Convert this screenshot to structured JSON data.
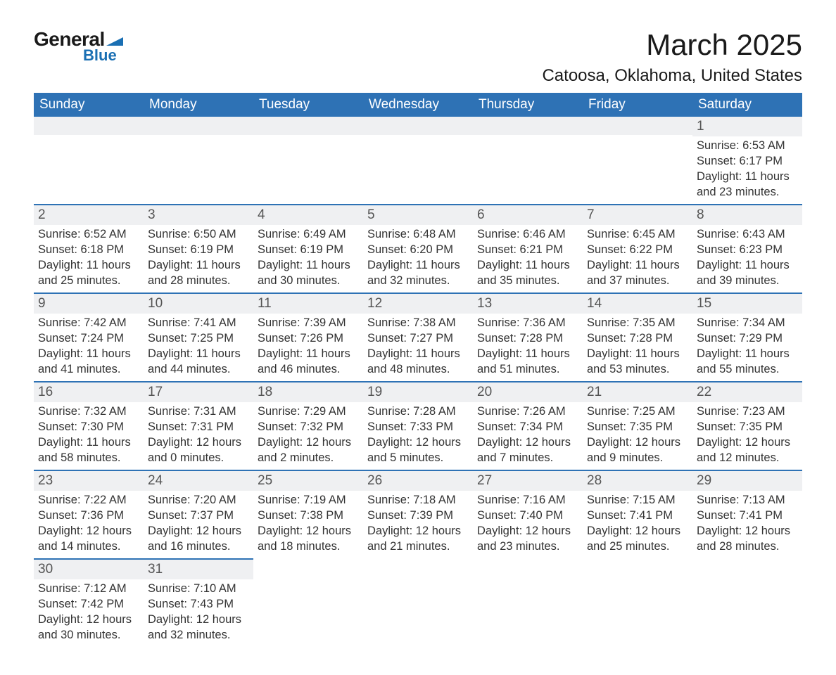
{
  "branding": {
    "logo_top_text": "General",
    "logo_bottom_text": "Blue",
    "logo_top_color": "#1a1a1a",
    "logo_bottom_color": "#1a6fb3",
    "logo_shape_color": "#1a6fb3"
  },
  "header": {
    "month_title": "March 2025",
    "location": "Catoosa, Oklahoma, United States"
  },
  "styling": {
    "page_background": "#ffffff",
    "header_bar_color": "#2e72b5",
    "header_text_color": "#ffffff",
    "daynum_row_color": "#eff0f2",
    "cell_top_border_color": "#2e72b5",
    "body_text_color": "#333333",
    "title_fontsize": 42,
    "location_fontsize": 24,
    "weekday_fontsize": 19,
    "daynum_fontsize": 19,
    "body_fontsize": 16.5
  },
  "weekdays": [
    "Sunday",
    "Monday",
    "Tuesday",
    "Wednesday",
    "Thursday",
    "Friday",
    "Saturday"
  ],
  "weeks": [
    [
      {
        "empty": true
      },
      {
        "empty": true
      },
      {
        "empty": true
      },
      {
        "empty": true
      },
      {
        "empty": true
      },
      {
        "empty": true
      },
      {
        "day": "1",
        "sunrise": "Sunrise: 6:53 AM",
        "sunset": "Sunset: 6:17 PM",
        "daylight1": "Daylight: 11 hours",
        "daylight2": "and 23 minutes."
      }
    ],
    [
      {
        "day": "2",
        "sunrise": "Sunrise: 6:52 AM",
        "sunset": "Sunset: 6:18 PM",
        "daylight1": "Daylight: 11 hours",
        "daylight2": "and 25 minutes."
      },
      {
        "day": "3",
        "sunrise": "Sunrise: 6:50 AM",
        "sunset": "Sunset: 6:19 PM",
        "daylight1": "Daylight: 11 hours",
        "daylight2": "and 28 minutes."
      },
      {
        "day": "4",
        "sunrise": "Sunrise: 6:49 AM",
        "sunset": "Sunset: 6:19 PM",
        "daylight1": "Daylight: 11 hours",
        "daylight2": "and 30 minutes."
      },
      {
        "day": "5",
        "sunrise": "Sunrise: 6:48 AM",
        "sunset": "Sunset: 6:20 PM",
        "daylight1": "Daylight: 11 hours",
        "daylight2": "and 32 minutes."
      },
      {
        "day": "6",
        "sunrise": "Sunrise: 6:46 AM",
        "sunset": "Sunset: 6:21 PM",
        "daylight1": "Daylight: 11 hours",
        "daylight2": "and 35 minutes."
      },
      {
        "day": "7",
        "sunrise": "Sunrise: 6:45 AM",
        "sunset": "Sunset: 6:22 PM",
        "daylight1": "Daylight: 11 hours",
        "daylight2": "and 37 minutes."
      },
      {
        "day": "8",
        "sunrise": "Sunrise: 6:43 AM",
        "sunset": "Sunset: 6:23 PM",
        "daylight1": "Daylight: 11 hours",
        "daylight2": "and 39 minutes."
      }
    ],
    [
      {
        "day": "9",
        "sunrise": "Sunrise: 7:42 AM",
        "sunset": "Sunset: 7:24 PM",
        "daylight1": "Daylight: 11 hours",
        "daylight2": "and 41 minutes."
      },
      {
        "day": "10",
        "sunrise": "Sunrise: 7:41 AM",
        "sunset": "Sunset: 7:25 PM",
        "daylight1": "Daylight: 11 hours",
        "daylight2": "and 44 minutes."
      },
      {
        "day": "11",
        "sunrise": "Sunrise: 7:39 AM",
        "sunset": "Sunset: 7:26 PM",
        "daylight1": "Daylight: 11 hours",
        "daylight2": "and 46 minutes."
      },
      {
        "day": "12",
        "sunrise": "Sunrise: 7:38 AM",
        "sunset": "Sunset: 7:27 PM",
        "daylight1": "Daylight: 11 hours",
        "daylight2": "and 48 minutes."
      },
      {
        "day": "13",
        "sunrise": "Sunrise: 7:36 AM",
        "sunset": "Sunset: 7:28 PM",
        "daylight1": "Daylight: 11 hours",
        "daylight2": "and 51 minutes."
      },
      {
        "day": "14",
        "sunrise": "Sunrise: 7:35 AM",
        "sunset": "Sunset: 7:28 PM",
        "daylight1": "Daylight: 11 hours",
        "daylight2": "and 53 minutes."
      },
      {
        "day": "15",
        "sunrise": "Sunrise: 7:34 AM",
        "sunset": "Sunset: 7:29 PM",
        "daylight1": "Daylight: 11 hours",
        "daylight2": "and 55 minutes."
      }
    ],
    [
      {
        "day": "16",
        "sunrise": "Sunrise: 7:32 AM",
        "sunset": "Sunset: 7:30 PM",
        "daylight1": "Daylight: 11 hours",
        "daylight2": "and 58 minutes."
      },
      {
        "day": "17",
        "sunrise": "Sunrise: 7:31 AM",
        "sunset": "Sunset: 7:31 PM",
        "daylight1": "Daylight: 12 hours",
        "daylight2": "and 0 minutes."
      },
      {
        "day": "18",
        "sunrise": "Sunrise: 7:29 AM",
        "sunset": "Sunset: 7:32 PM",
        "daylight1": "Daylight: 12 hours",
        "daylight2": "and 2 minutes."
      },
      {
        "day": "19",
        "sunrise": "Sunrise: 7:28 AM",
        "sunset": "Sunset: 7:33 PM",
        "daylight1": "Daylight: 12 hours",
        "daylight2": "and 5 minutes."
      },
      {
        "day": "20",
        "sunrise": "Sunrise: 7:26 AM",
        "sunset": "Sunset: 7:34 PM",
        "daylight1": "Daylight: 12 hours",
        "daylight2": "and 7 minutes."
      },
      {
        "day": "21",
        "sunrise": "Sunrise: 7:25 AM",
        "sunset": "Sunset: 7:35 PM",
        "daylight1": "Daylight: 12 hours",
        "daylight2": "and 9 minutes."
      },
      {
        "day": "22",
        "sunrise": "Sunrise: 7:23 AM",
        "sunset": "Sunset: 7:35 PM",
        "daylight1": "Daylight: 12 hours",
        "daylight2": "and 12 minutes."
      }
    ],
    [
      {
        "day": "23",
        "sunrise": "Sunrise: 7:22 AM",
        "sunset": "Sunset: 7:36 PM",
        "daylight1": "Daylight: 12 hours",
        "daylight2": "and 14 minutes."
      },
      {
        "day": "24",
        "sunrise": "Sunrise: 7:20 AM",
        "sunset": "Sunset: 7:37 PM",
        "daylight1": "Daylight: 12 hours",
        "daylight2": "and 16 minutes."
      },
      {
        "day": "25",
        "sunrise": "Sunrise: 7:19 AM",
        "sunset": "Sunset: 7:38 PM",
        "daylight1": "Daylight: 12 hours",
        "daylight2": "and 18 minutes."
      },
      {
        "day": "26",
        "sunrise": "Sunrise: 7:18 AM",
        "sunset": "Sunset: 7:39 PM",
        "daylight1": "Daylight: 12 hours",
        "daylight2": "and 21 minutes."
      },
      {
        "day": "27",
        "sunrise": "Sunrise: 7:16 AM",
        "sunset": "Sunset: 7:40 PM",
        "daylight1": "Daylight: 12 hours",
        "daylight2": "and 23 minutes."
      },
      {
        "day": "28",
        "sunrise": "Sunrise: 7:15 AM",
        "sunset": "Sunset: 7:41 PM",
        "daylight1": "Daylight: 12 hours",
        "daylight2": "and 25 minutes."
      },
      {
        "day": "29",
        "sunrise": "Sunrise: 7:13 AM",
        "sunset": "Sunset: 7:41 PM",
        "daylight1": "Daylight: 12 hours",
        "daylight2": "and 28 minutes."
      }
    ],
    [
      {
        "day": "30",
        "sunrise": "Sunrise: 7:12 AM",
        "sunset": "Sunset: 7:42 PM",
        "daylight1": "Daylight: 12 hours",
        "daylight2": "and 30 minutes."
      },
      {
        "day": "31",
        "sunrise": "Sunrise: 7:10 AM",
        "sunset": "Sunset: 7:43 PM",
        "daylight1": "Daylight: 12 hours",
        "daylight2": "and 32 minutes."
      },
      {
        "empty": true
      },
      {
        "empty": true
      },
      {
        "empty": true
      },
      {
        "empty": true
      },
      {
        "empty": true
      }
    ]
  ]
}
